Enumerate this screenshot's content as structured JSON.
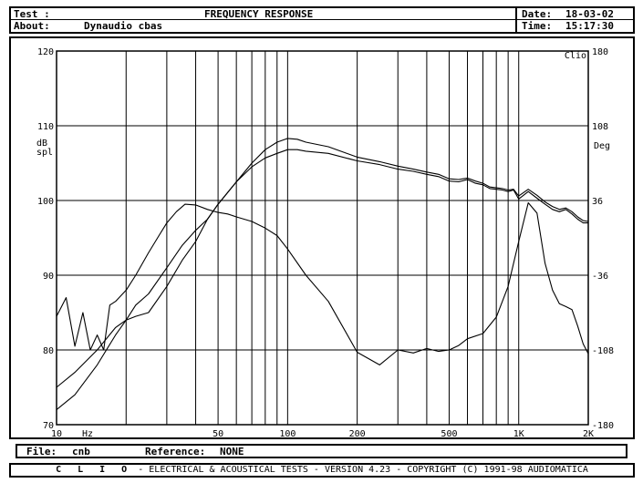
{
  "header": {
    "test_label": "Test :",
    "title": "FREQUENCY RESPONSE",
    "about_label": "About:",
    "about_value": "Dynaudio cbas",
    "date_label": "Date:",
    "date_value": "18-03-02",
    "time_label": "Time:",
    "time_value": "15:17:30"
  },
  "chart_data": {
    "type": "line",
    "title": "FREQUENCY RESPONSE",
    "x_scale": "log",
    "xlim": [
      10,
      2000
    ],
    "x_ticks": [
      10,
      50,
      100,
      200,
      500,
      1000,
      2000
    ],
    "x_tick_labels": [
      "10",
      "50",
      "100",
      "200",
      "500",
      "1K",
      "2K"
    ],
    "x_unit": "Hz",
    "y_left_label": "dB spl",
    "ylim_left": [
      70,
      120
    ],
    "y_left_ticks": [
      70,
      80,
      90,
      100,
      110,
      120
    ],
    "y_right_label": "Deg",
    "ylim_right": [
      -180,
      180
    ],
    "y_right_ticks": [
      -180,
      -108,
      -36,
      36,
      108,
      180
    ],
    "grid": true,
    "corner_label": "Clio",
    "series": [
      {
        "axis": "left",
        "x": [
          10,
          12,
          15,
          18,
          20,
          22,
          25,
          30,
          35,
          40,
          45,
          50,
          60,
          70,
          80,
          90,
          100,
          110,
          120,
          150,
          200,
          250,
          300,
          350,
          400,
          450,
          500,
          550,
          600,
          650,
          700,
          750,
          800,
          850,
          900,
          950,
          1000,
          1100,
          1200,
          1300,
          1400,
          1500,
          1600,
          1700,
          1800,
          1900,
          2000
        ],
        "y": [
          75,
          77,
          80,
          83,
          84,
          86,
          87.5,
          91,
          94,
          96,
          97.5,
          99.5,
          102.5,
          104.5,
          105.7,
          106.3,
          106.8,
          106.8,
          106.6,
          106.3,
          105.3,
          104.8,
          104.2,
          103.9,
          103.5,
          103.2,
          102.6,
          102.5,
          102.8,
          102.3,
          102.1,
          101.6,
          101.5,
          101.4,
          101.2,
          101.4,
          100.2,
          101.2,
          100.3,
          99.5,
          98.8,
          98.5,
          98.8,
          98.2,
          97.5,
          97.0,
          97.0
        ]
      },
      {
        "axis": "left",
        "x": [
          10,
          12,
          15,
          18,
          20,
          22,
          25,
          30,
          35,
          40,
          45,
          50,
          60,
          70,
          80,
          90,
          100,
          110,
          120,
          150,
          200,
          250,
          300,
          350,
          400,
          450,
          500,
          550,
          600,
          650,
          700,
          750,
          800,
          850,
          900,
          950,
          1000,
          1100,
          1200,
          1300,
          1400,
          1500,
          1600,
          1700,
          1800,
          1900,
          2000
        ],
        "y": [
          72,
          74,
          78,
          82,
          84,
          84.5,
          85,
          88.5,
          92,
          94.5,
          97.5,
          99.5,
          102.5,
          105,
          106.8,
          107.8,
          108.3,
          108.2,
          107.8,
          107.2,
          105.8,
          105.2,
          104.6,
          104.2,
          103.8,
          103.5,
          102.9,
          102.8,
          103.0,
          102.6,
          102.3,
          101.8,
          101.7,
          101.6,
          101.4,
          101.5,
          100.6,
          101.5,
          100.7,
          99.8,
          99.2,
          98.8,
          99.0,
          98.5,
          97.8,
          97.3,
          97.2
        ]
      },
      {
        "axis": "left",
        "x": [
          10,
          11,
          12,
          13,
          14,
          15,
          16,
          17,
          18,
          20,
          22,
          25,
          28,
          30,
          33,
          36,
          40,
          45,
          50,
          55,
          60,
          70,
          80,
          90,
          100,
          120,
          150,
          200,
          250,
          300,
          350,
          400,
          450,
          500,
          550,
          600,
          700,
          800,
          900,
          1000,
          1100,
          1200,
          1300,
          1400,
          1500,
          1600,
          1700,
          1800,
          1900,
          2000
        ],
        "y": [
          84.5,
          87,
          80.5,
          85,
          80,
          82,
          80,
          86,
          86.5,
          88,
          90,
          93,
          95.5,
          97,
          98.5,
          99.5,
          99.4,
          98.8,
          98.4,
          98.2,
          97.8,
          97.2,
          96.3,
          95.3,
          93.5,
          90,
          86.5,
          79.7,
          78,
          80,
          79.6,
          80.2,
          79.8,
          80.0,
          80.6,
          81.5,
          82.2,
          84.4,
          88.5,
          94.5,
          99.7,
          98.3,
          91.6,
          88.0,
          86.2,
          85.8,
          85.4,
          83.2,
          80.8,
          79.5
        ]
      }
    ]
  },
  "file_bar": {
    "file_label": "File:",
    "file_value": "cnb",
    "reference_label": "Reference:",
    "reference_value": "NONE"
  },
  "footer": {
    "brand": "C L I O",
    "text": "- ELECTRICAL & ACOUSTICAL TESTS - VERSION 4.23 - COPYRIGHT (C) 1991-98 AUDIOMATICA"
  }
}
